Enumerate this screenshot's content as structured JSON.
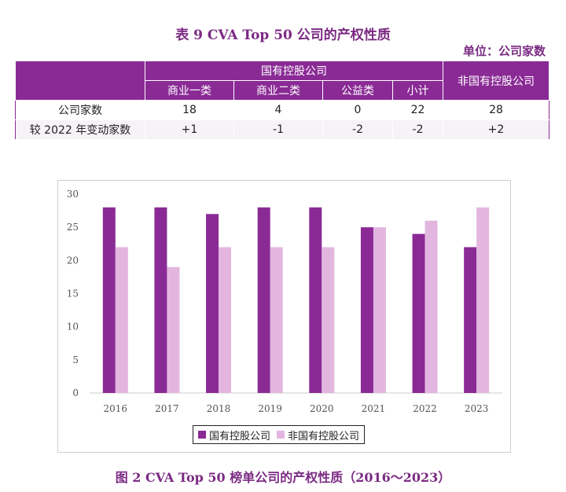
{
  "table": {
    "title": "表 9    CVA Top 50 公司的产权性质",
    "unit": "单位：公司家数",
    "group_header": "国有控股公司",
    "non_state_header": "非国有控股公司",
    "sub_headers": [
      "商业一类",
      "商业二类",
      "公益类",
      "小计"
    ],
    "rows": [
      {
        "label": "公司家数",
        "values": [
          "18",
          "4",
          "0",
          "22",
          "28"
        ]
      },
      {
        "label": "较 2022 年变动家数",
        "values": [
          "+1",
          "-1",
          "-2",
          "-2",
          "+2"
        ]
      }
    ]
  },
  "figure_title": "图 2    CVA Top 50 榜单公司的产权性质（2016～2023）",
  "colors": {
    "state": "#8a2a95",
    "non_state": "#e3b6e0",
    "title": "#7b2a83"
  },
  "chart_data": {
    "type": "bar",
    "categories": [
      "2016",
      "2017",
      "2018",
      "2019",
      "2020",
      "2021",
      "2022",
      "2023"
    ],
    "series": [
      {
        "name": "国有控股公司",
        "values": [
          28,
          28,
          27,
          28,
          28,
          25,
          24,
          22
        ]
      },
      {
        "name": "非国有控股公司",
        "values": [
          22,
          19,
          22,
          22,
          22,
          25,
          26,
          28
        ]
      }
    ],
    "ylim": [
      0,
      30
    ],
    "yticks": [
      "0",
      "5",
      "10",
      "15",
      "20",
      "25",
      "30"
    ],
    "grid": false,
    "legend": "bottom"
  }
}
